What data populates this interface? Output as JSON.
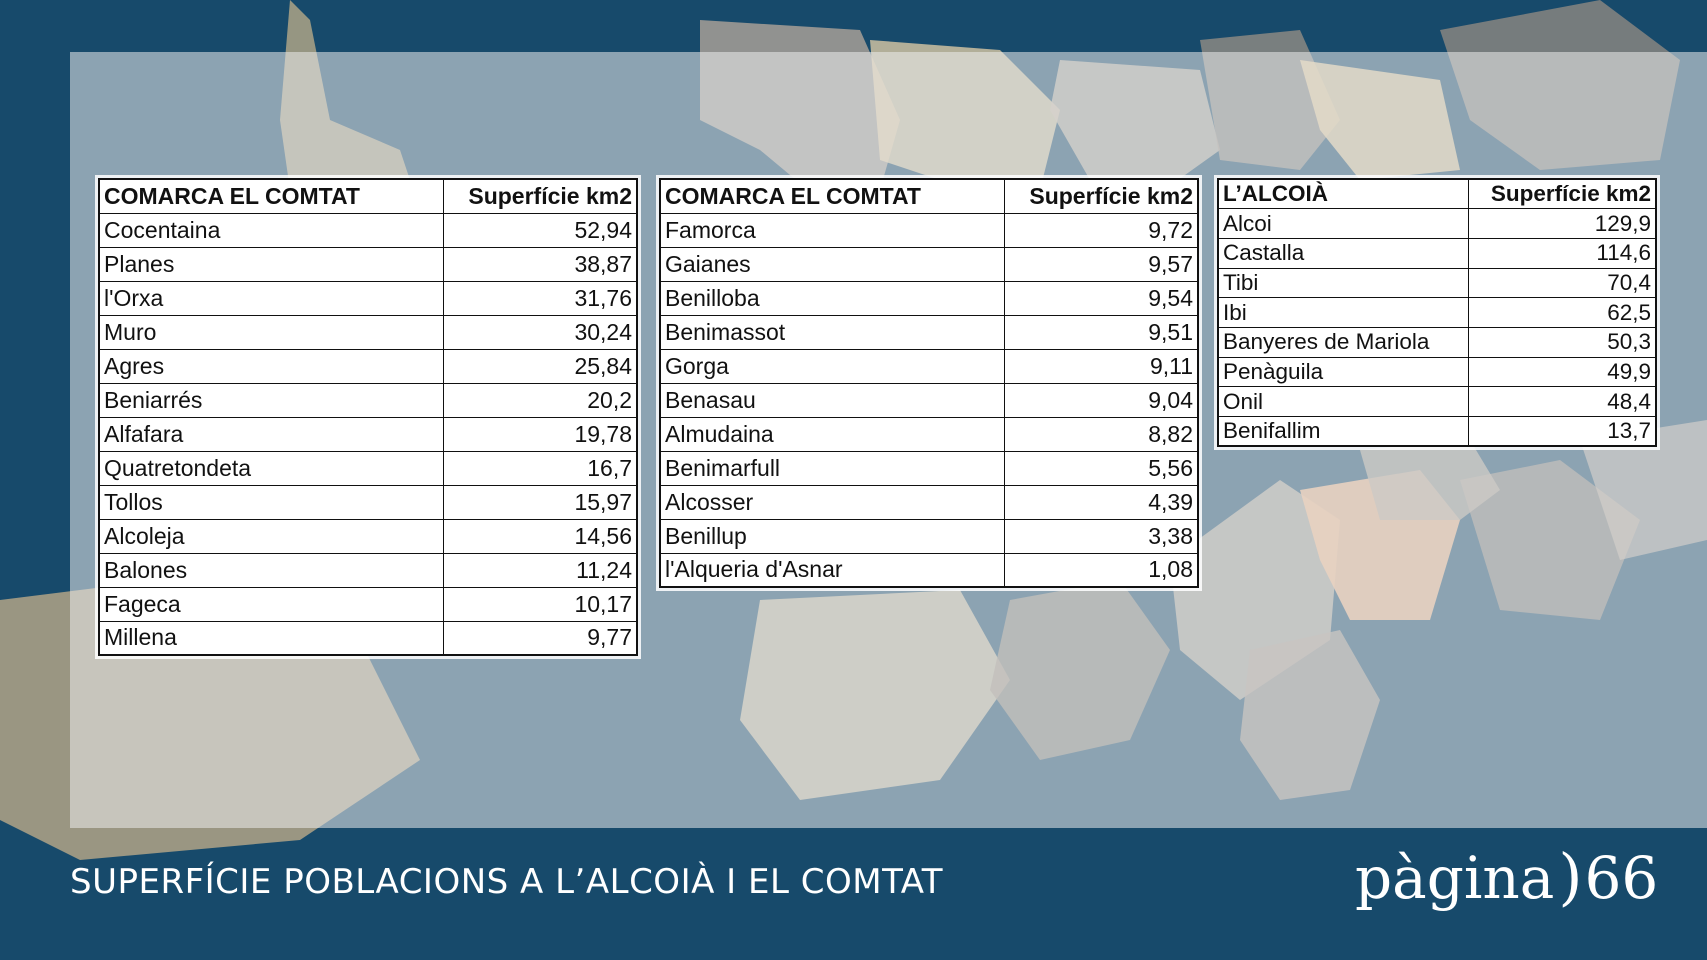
{
  "tables": [
    {
      "header": [
        "COMARCA EL COMTAT",
        "Superfície km2"
      ],
      "rows": [
        [
          "Cocentaina",
          "52,94"
        ],
        [
          "Planes",
          "38,87"
        ],
        [
          "l'Orxa",
          "31,76"
        ],
        [
          "Muro",
          "30,24"
        ],
        [
          "Agres",
          "25,84"
        ],
        [
          "Beniarrés",
          "20,2"
        ],
        [
          "Alfafara",
          "19,78"
        ],
        [
          "Quatretondeta",
          "16,7"
        ],
        [
          "Tollos",
          "15,97"
        ],
        [
          "Alcoleja",
          "14,56"
        ],
        [
          "Balones",
          "11,24"
        ],
        [
          "Fageca",
          "10,17"
        ],
        [
          "Millena",
          "9,77"
        ]
      ]
    },
    {
      "header": [
        "COMARCA EL COMTAT",
        "Superfície km2"
      ],
      "rows": [
        [
          "Famorca",
          "9,72"
        ],
        [
          "Gaianes",
          "9,57"
        ],
        [
          "Benilloba",
          "9,54"
        ],
        [
          "Benimassot",
          "9,51"
        ],
        [
          "Gorga",
          "9,11"
        ],
        [
          "Benasau",
          "9,04"
        ],
        [
          "Almudaina",
          "8,82"
        ],
        [
          "Benimarfull",
          "5,56"
        ],
        [
          "Alcosser",
          "4,39"
        ],
        [
          "Benillup",
          "3,38"
        ],
        [
          "l'Alqueria d'Asnar",
          "1,08"
        ]
      ]
    },
    {
      "header": [
        "L’ALCOIÀ",
        "Superfície km2"
      ],
      "rows": [
        [
          "Alcoi",
          "129,9"
        ],
        [
          "Castalla",
          "114,6"
        ],
        [
          "Tibi",
          "70,4"
        ],
        [
          "Ibi",
          "62,5"
        ],
        [
          "Banyeres de Mariola",
          "50,3"
        ],
        [
          "Penàguila",
          "49,9"
        ],
        [
          "Onil",
          "48,4"
        ],
        [
          "Benifallim",
          "13,7"
        ]
      ]
    }
  ],
  "footer": {
    "title": "SUPERFÍCIE POBLACIONS A L’ALCOIÀ I EL COMTAT",
    "logo_word": "pàgina",
    "logo_paren": ")",
    "logo_number": "66"
  },
  "colors": {
    "background": "#174a6b",
    "text_light": "#ffffff"
  }
}
